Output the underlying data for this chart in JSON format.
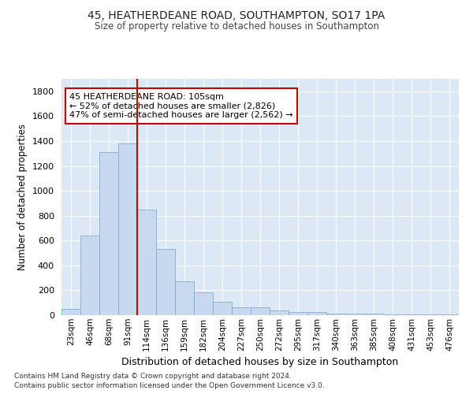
{
  "title_line1": "45, HEATHERDEANE ROAD, SOUTHAMPTON, SO17 1PA",
  "title_line2": "Size of property relative to detached houses in Southampton",
  "xlabel": "Distribution of detached houses by size in Southampton",
  "ylabel": "Number of detached properties",
  "categories": [
    "23sqm",
    "46sqm",
    "68sqm",
    "91sqm",
    "114sqm",
    "136sqm",
    "159sqm",
    "182sqm",
    "204sqm",
    "227sqm",
    "250sqm",
    "272sqm",
    "295sqm",
    "317sqm",
    "340sqm",
    "363sqm",
    "385sqm",
    "408sqm",
    "431sqm",
    "453sqm",
    "476sqm"
  ],
  "values": [
    50,
    640,
    1310,
    1380,
    850,
    530,
    275,
    185,
    105,
    65,
    65,
    40,
    25,
    25,
    15,
    10,
    10,
    5,
    5,
    5,
    5
  ],
  "bar_color": "#c8d9ef",
  "bar_edge_color": "#7bafd4",
  "background_color": "#ffffff",
  "plot_bg_color": "#dce8f5",
  "grid_color": "#ffffff",
  "vline_x": 3.5,
  "vline_color": "#cc0000",
  "annotation_text": "45 HEATHERDEANE ROAD: 105sqm\n← 52% of detached houses are smaller (2,826)\n47% of semi-detached houses are larger (2,562) →",
  "annotation_box_color": "#cc0000",
  "ylim": [
    0,
    1900
  ],
  "yticks": [
    0,
    200,
    400,
    600,
    800,
    1000,
    1200,
    1400,
    1600,
    1800
  ],
  "footnote_line1": "Contains HM Land Registry data © Crown copyright and database right 2024.",
  "footnote_line2": "Contains public sector information licensed under the Open Government Licence v3.0."
}
